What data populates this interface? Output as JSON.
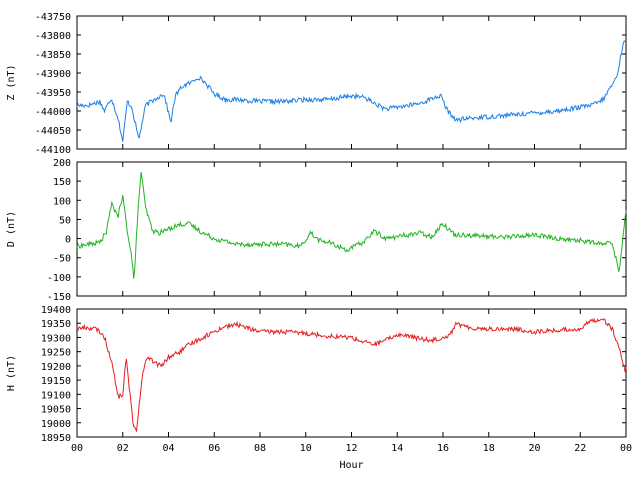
{
  "chart_data": [
    {
      "type": "line",
      "title": "",
      "xlabel": "",
      "ylabel": "Z (nT)",
      "ylim": [
        -44100,
        -43750
      ],
      "yticks": [
        "-43750",
        "-43800",
        "-43850",
        "-43900",
        "-43950",
        "-44000",
        "-44050",
        "-44100"
      ],
      "ytick_values": [
        -43750,
        -43800,
        -43850,
        -43900,
        -43950,
        -44000,
        -44050,
        -44100
      ],
      "color": "#1e7fe6",
      "series": [
        {
          "x": [
            0,
            0.5,
            1.0,
            1.2,
            1.5,
            1.8,
            2.0,
            2.2,
            2.4,
            2.7,
            3.0,
            3.5,
            3.8,
            4.1,
            4.3,
            4.6,
            5.0,
            5.3,
            5.6,
            6.0,
            6.5,
            7.0,
            8.0,
            9.0,
            10.0,
            11.0,
            12.0,
            12.6,
            13.0,
            13.5,
            14.0,
            15.0,
            15.6,
            15.9,
            16.2,
            16.6,
            17.0,
            18.0,
            19.0,
            20.0,
            21.0,
            22.0,
            22.5,
            23.0,
            23.3,
            23.6,
            23.85,
            24.0
          ],
          "y": [
            -43985,
            -43985,
            -43975,
            -44000,
            -43965,
            -44020,
            -44080,
            -43975,
            -43990,
            -44075,
            -43985,
            -43965,
            -43955,
            -44030,
            -43960,
            -43935,
            -43925,
            -43910,
            -43925,
            -43955,
            -43970,
            -43970,
            -43975,
            -43975,
            -43970,
            -43970,
            -43960,
            -43965,
            -43980,
            -43995,
            -43990,
            -43980,
            -43965,
            -43960,
            -44000,
            -44025,
            -44020,
            -44015,
            -44010,
            -44005,
            -44000,
            -43990,
            -43985,
            -43970,
            -43940,
            -43910,
            -43830,
            -43810
          ]
        }
      ]
    },
    {
      "type": "line",
      "title": "",
      "xlabel": "",
      "ylabel": "D (nT)",
      "ylim": [
        -150,
        200
      ],
      "yticks": [
        "200",
        "150",
        "100",
        "50",
        "0",
        "-50",
        "-100",
        "-150"
      ],
      "ytick_values": [
        200,
        150,
        100,
        50,
        0,
        -50,
        -100,
        -150
      ],
      "color": "#22b422",
      "series": [
        {
          "x": [
            0,
            0.5,
            1.0,
            1.3,
            1.5,
            1.8,
            2.0,
            2.2,
            2.35,
            2.5,
            2.65,
            2.8,
            3.0,
            3.3,
            3.6,
            4.0,
            4.4,
            4.8,
            5.0,
            5.5,
            6.0,
            7.0,
            8.0,
            9.0,
            9.8,
            10.2,
            10.6,
            11.0,
            11.8,
            12.5,
            13.0,
            13.5,
            14.0,
            14.5,
            15.0,
            15.5,
            16.0,
            16.5,
            17.0,
            18.0,
            19.0,
            20.0,
            21.0,
            22.0,
            22.5,
            23.0,
            23.4,
            23.7,
            24.0
          ],
          "y": [
            -20,
            -15,
            -10,
            20,
            90,
            60,
            110,
            20,
            -30,
            -110,
            60,
            175,
            80,
            20,
            15,
            25,
            35,
            40,
            35,
            15,
            0,
            -15,
            -15,
            -15,
            -20,
            15,
            -5,
            -10,
            -30,
            -10,
            20,
            0,
            5,
            10,
            15,
            5,
            40,
            10,
            10,
            5,
            5,
            10,
            0,
            -5,
            -10,
            -15,
            -10,
            -90,
            80
          ]
        }
      ]
    },
    {
      "type": "line",
      "title": "",
      "xlabel": "Hour",
      "ylabel": "H (nT)",
      "ylim": [
        18950,
        19400
      ],
      "yticks": [
        "19400",
        "19350",
        "19300",
        "19250",
        "19200",
        "19150",
        "19100",
        "19050",
        "19000",
        "18950"
      ],
      "ytick_values": [
        19400,
        19350,
        19300,
        19250,
        19200,
        19150,
        19100,
        19050,
        19000,
        18950
      ],
      "xticks": [
        "00",
        "02",
        "04",
        "06",
        "08",
        "10",
        "12",
        "14",
        "16",
        "18",
        "20",
        "22",
        "00"
      ],
      "xtick_values": [
        0,
        2,
        4,
        6,
        8,
        10,
        12,
        14,
        16,
        18,
        20,
        22,
        24
      ],
      "color": "#e61e1e",
      "series": [
        {
          "x": [
            0,
            0.3,
            0.8,
            1.0,
            1.2,
            1.5,
            1.8,
            2.0,
            2.15,
            2.3,
            2.45,
            2.6,
            2.75,
            2.9,
            3.1,
            3.4,
            3.7,
            4.0,
            4.5,
            5.0,
            5.5,
            6.0,
            6.5,
            7.0,
            8.0,
            9.0,
            10.0,
            11.0,
            12.0,
            12.5,
            13.0,
            13.5,
            14.0,
            14.5,
            15.0,
            15.5,
            16.0,
            16.3,
            16.6,
            17.0,
            18.0,
            19.0,
            20.0,
            21.0,
            22.0,
            22.5,
            23.0,
            23.4,
            23.7,
            24.0
          ],
          "y": [
            19330,
            19335,
            19330,
            19320,
            19300,
            19220,
            19090,
            19100,
            19230,
            19110,
            19000,
            18970,
            19090,
            19190,
            19230,
            19210,
            19200,
            19230,
            19250,
            19280,
            19300,
            19320,
            19340,
            19345,
            19320,
            19320,
            19315,
            19305,
            19300,
            19285,
            19275,
            19290,
            19310,
            19305,
            19295,
            19290,
            19300,
            19310,
            19350,
            19335,
            19330,
            19330,
            19320,
            19325,
            19330,
            19360,
            19365,
            19330,
            19260,
            19170
          ]
        }
      ]
    }
  ]
}
